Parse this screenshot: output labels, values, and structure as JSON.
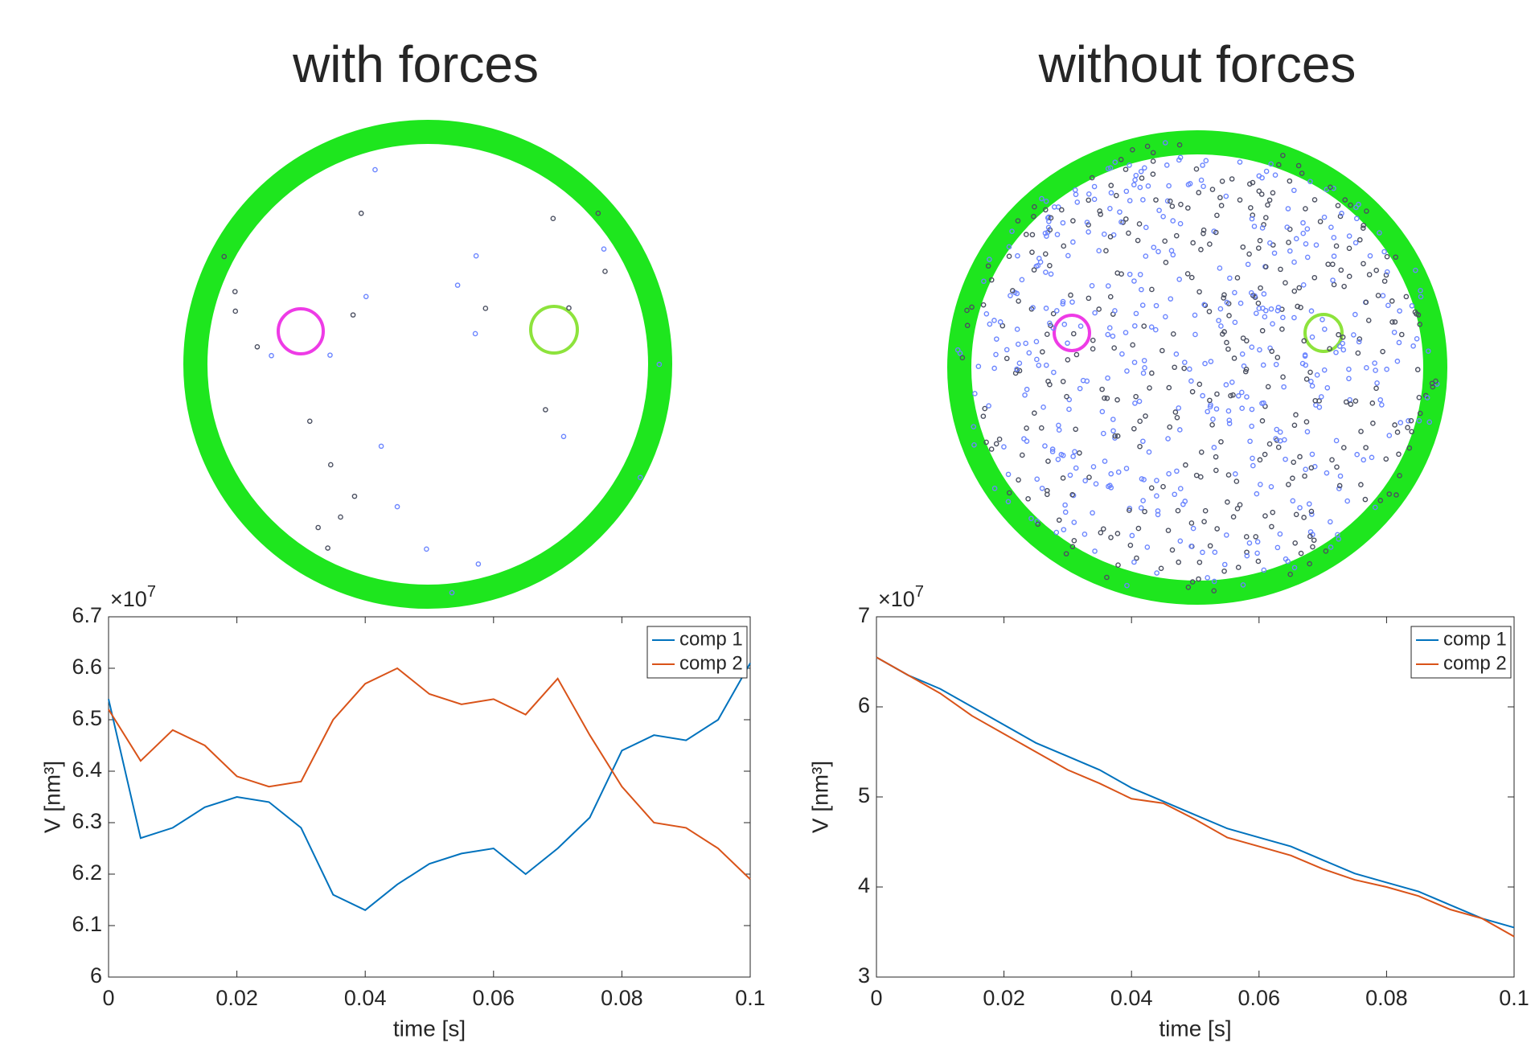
{
  "chart_data": [
    {
      "type": "line",
      "title": "with forces",
      "xlabel": "time [s]",
      "ylabel": "V [nm³]",
      "multiplier": {
        "base": "×10",
        "exponent": "7"
      },
      "x": [
        0,
        0.005,
        0.01,
        0.015,
        0.02,
        0.025,
        0.03,
        0.035,
        0.04,
        0.045,
        0.05,
        0.055,
        0.06,
        0.065,
        0.07,
        0.075,
        0.08,
        0.085,
        0.09,
        0.095,
        0.1
      ],
      "series": [
        {
          "name": "comp 1",
          "color": "#0072bd",
          "values": [
            6.54,
            6.27,
            6.29,
            6.33,
            6.35,
            6.34,
            6.29,
            6.16,
            6.13,
            6.18,
            6.22,
            6.24,
            6.25,
            6.2,
            6.25,
            6.31,
            6.44,
            6.47,
            6.46,
            6.5,
            6.61
          ]
        },
        {
          "name": "comp 2",
          "color": "#d95319",
          "values": [
            6.52,
            6.42,
            6.48,
            6.45,
            6.39,
            6.37,
            6.38,
            6.5,
            6.57,
            6.6,
            6.55,
            6.53,
            6.54,
            6.51,
            6.58,
            6.47,
            6.37,
            6.3,
            6.29,
            6.25,
            6.19
          ]
        }
      ],
      "xlim": [
        0,
        0.1
      ],
      "xticks": [
        0,
        0.02,
        0.04,
        0.06,
        0.08,
        0.1
      ],
      "ylim": [
        6,
        6.7
      ],
      "yticks": [
        6,
        6.1,
        6.2,
        6.3,
        6.4,
        6.5,
        6.6,
        6.7
      ],
      "legend": "upper right"
    },
    {
      "type": "line",
      "title": "without forces",
      "xlabel": "time [s]",
      "ylabel": "V [nm³]",
      "multiplier": {
        "base": "×10",
        "exponent": "7"
      },
      "x": [
        0,
        0.005,
        0.01,
        0.015,
        0.02,
        0.025,
        0.03,
        0.035,
        0.04,
        0.045,
        0.05,
        0.055,
        0.06,
        0.065,
        0.07,
        0.075,
        0.08,
        0.085,
        0.09,
        0.095,
        0.1
      ],
      "series": [
        {
          "name": "comp 1",
          "color": "#0072bd",
          "values": [
            6.55,
            6.35,
            6.2,
            6.0,
            5.8,
            5.6,
            5.45,
            5.3,
            5.1,
            4.95,
            4.8,
            4.65,
            4.55,
            4.45,
            4.3,
            4.15,
            4.05,
            3.95,
            3.8,
            3.65,
            3.55
          ]
        },
        {
          "name": "comp 2",
          "color": "#d95319",
          "values": [
            6.55,
            6.35,
            6.15,
            5.9,
            5.7,
            5.5,
            5.3,
            5.15,
            4.98,
            4.93,
            4.75,
            4.55,
            4.45,
            4.35,
            4.2,
            4.08,
            4.0,
            3.9,
            3.75,
            3.65,
            3.45
          ]
        }
      ],
      "xlim": [
        0,
        0.1
      ],
      "xticks": [
        0,
        0.02,
        0.04,
        0.06,
        0.08,
        0.1
      ],
      "ylim": [
        3,
        7
      ],
      "yticks": [
        3,
        4,
        5,
        6,
        7
      ],
      "legend": "upper right"
    }
  ]
}
